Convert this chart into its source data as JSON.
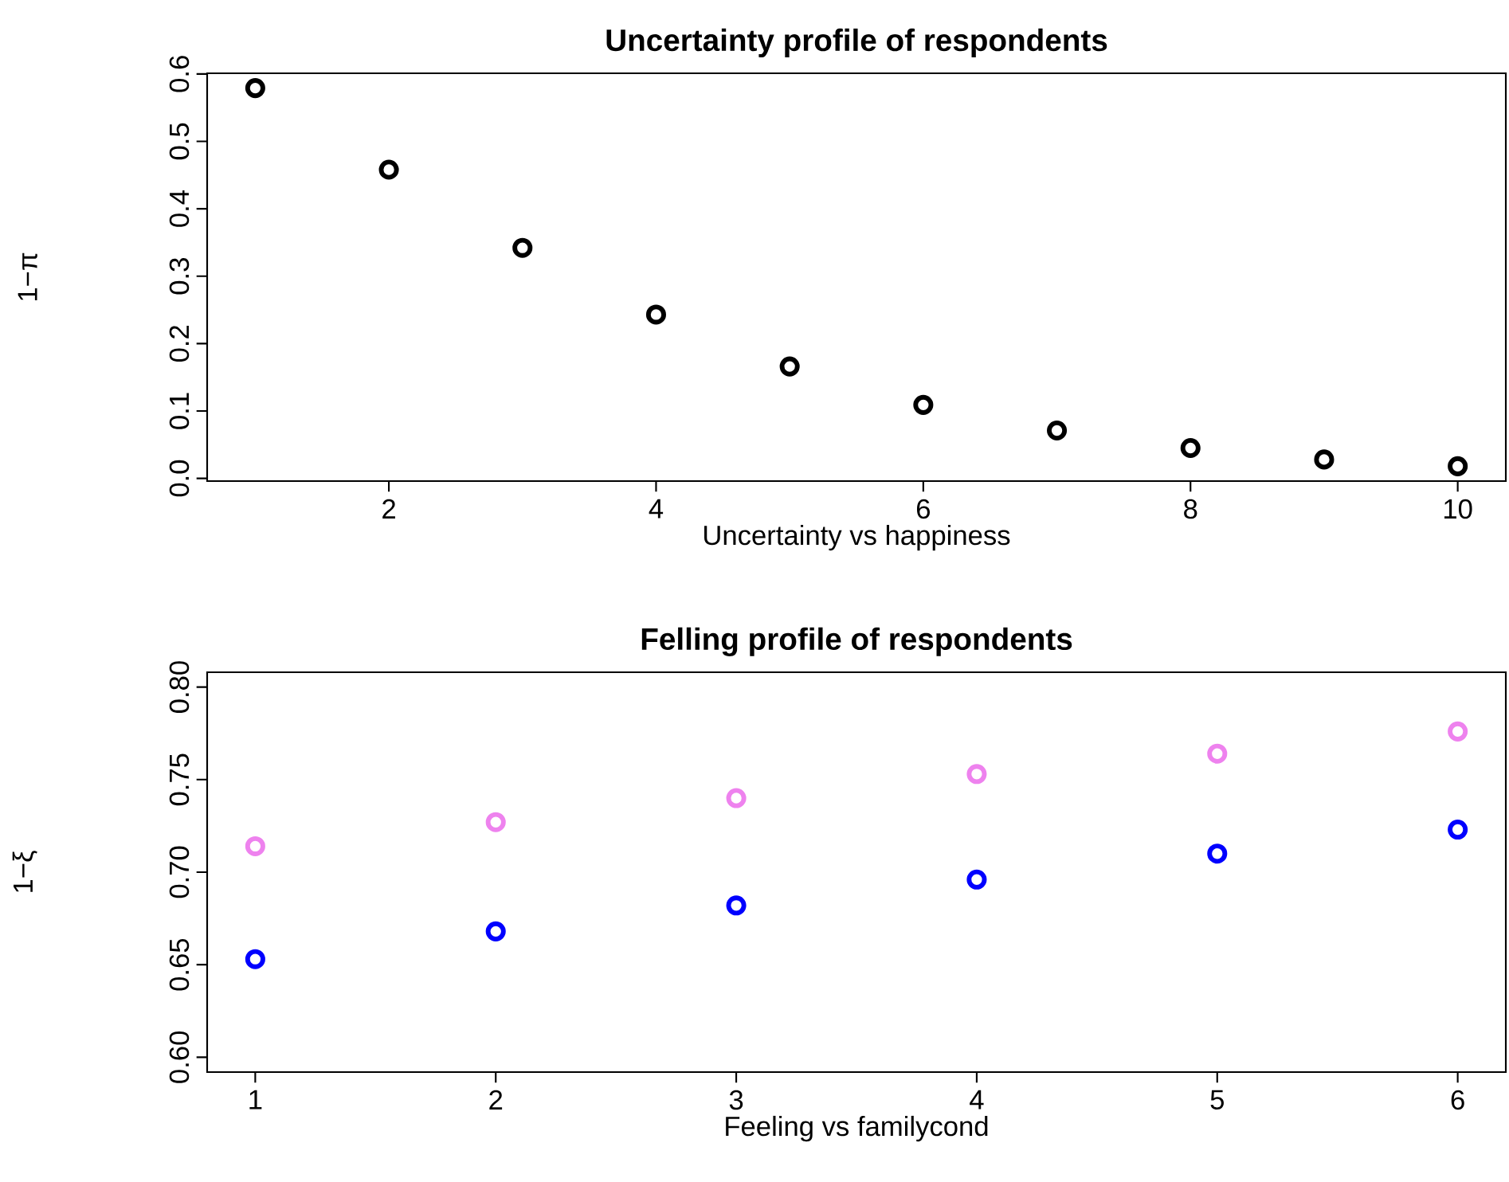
{
  "chart_data": [
    {
      "type": "scatter",
      "title": "Uncertainty profile of respondents",
      "xlabel": "Uncertainty vs happiness",
      "ylabel": "1−π",
      "x": [
        1,
        2,
        3,
        4,
        5,
        6,
        7,
        8,
        9,
        10
      ],
      "series": [
        {
          "color": "#000000",
          "values": [
            0.579,
            0.458,
            0.342,
            0.243,
            0.166,
            0.109,
            0.071,
            0.045,
            0.028,
            0.018
          ]
        }
      ],
      "xlim": [
        0.64,
        10.36
      ],
      "ylim": [
        -0.004,
        0.601
      ],
      "xticks": [
        2,
        4,
        6,
        8,
        10
      ],
      "yticks": [
        {
          "value": 0,
          "label": "0.0"
        },
        {
          "value": 0.1,
          "label": "0.1"
        },
        {
          "value": 0.2,
          "label": "0.2"
        },
        {
          "value": 0.3,
          "label": "0.3"
        },
        {
          "value": 0.4,
          "label": "0.4"
        },
        {
          "value": 0.5,
          "label": "0.5"
        },
        {
          "value": 0.6,
          "label": "0.6"
        }
      ],
      "marker": "circle"
    },
    {
      "type": "scatter",
      "title": "Felling profile of respondents",
      "xlabel": "Feeling vs familycond",
      "ylabel": "1−ξ",
      "x": [
        1,
        2,
        3,
        4,
        5,
        6
      ],
      "series": [
        {
          "color": "#ee82ee",
          "values": [
            0.714,
            0.727,
            0.74,
            0.753,
            0.764,
            0.776
          ]
        },
        {
          "color": "#0000ff",
          "values": [
            0.653,
            0.668,
            0.682,
            0.696,
            0.71,
            0.723
          ]
        }
      ],
      "xlim": [
        0.8,
        6.2
      ],
      "ylim": [
        0.592,
        0.808
      ],
      "xticks": [
        1,
        2,
        3,
        4,
        5,
        6
      ],
      "yticks": [
        {
          "value": 0.6,
          "label": "0.60"
        },
        {
          "value": 0.65,
          "label": "0.65"
        },
        {
          "value": 0.7,
          "label": "0.70"
        },
        {
          "value": 0.75,
          "label": "0.75"
        },
        {
          "value": 0.8,
          "label": "0.80"
        }
      ],
      "marker": "circle"
    }
  ]
}
